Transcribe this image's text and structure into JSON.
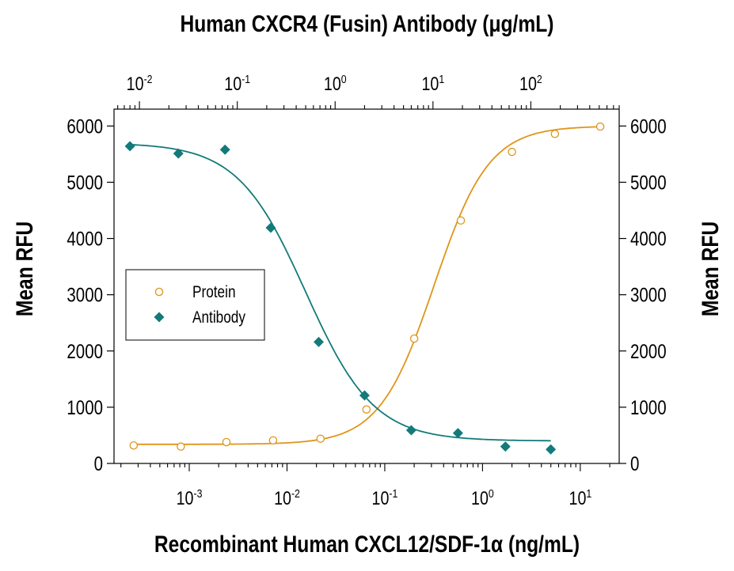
{
  "chart_data": {
    "type": "scatter",
    "title_top": "Human CXCR4 (Fusin) Antibody (μg/mL)",
    "xlabel": "Recombinant Human CXCL12/SDF-1α (ng/mL)",
    "ylabel_left": "Mean RFU",
    "ylabel_right": "Mean RFU",
    "x_scale": "log",
    "x_bottom_range": [
      0.00017,
      25
    ],
    "x_top_range": [
      0.0055,
      800
    ],
    "ylim": [
      0,
      6300
    ],
    "y_ticks": [
      "0",
      "1000",
      "2000",
      "3000",
      "4000",
      "5000",
      "6000"
    ],
    "x_bottom_ticks": [
      {
        "base": "10",
        "exp": "-3",
        "value": 0.001
      },
      {
        "base": "10",
        "exp": "-2",
        "value": 0.01
      },
      {
        "base": "10",
        "exp": "-1",
        "value": 0.1
      },
      {
        "base": "10",
        "exp": "0",
        "value": 1
      },
      {
        "base": "10",
        "exp": "1",
        "value": 10
      }
    ],
    "x_top_ticks": [
      {
        "base": "10",
        "exp": "-2",
        "value": 0.01
      },
      {
        "base": "10",
        "exp": "-1",
        "value": 0.1
      },
      {
        "base": "10",
        "exp": "0",
        "value": 1
      },
      {
        "base": "10",
        "exp": "1",
        "value": 10
      },
      {
        "base": "10",
        "exp": "2",
        "value": 100
      }
    ],
    "legend_position": "middle-left",
    "grid": false,
    "series": [
      {
        "name": "Protein",
        "marker": "open-circle",
        "color": "#E0951A",
        "axis": "bottom",
        "x": [
          0.00027,
          0.00082,
          0.0024,
          0.0072,
          0.022,
          0.065,
          0.2,
          0.6,
          2.0,
          5.5,
          16
        ],
        "y": [
          320,
          300,
          380,
          410,
          440,
          960,
          2220,
          4320,
          5540,
          5860,
          5990
        ],
        "fit": {
          "bottom": 340,
          "top": 6000,
          "ec50": 0.32,
          "hill": 1.55
        }
      },
      {
        "name": "Antibody",
        "marker": "filled-diamond",
        "color": "#137A7A",
        "axis": "top",
        "x": [
          0.008,
          0.025,
          0.075,
          0.22,
          0.68,
          2.0,
          6.0,
          18,
          55,
          160
        ],
        "y": [
          5640,
          5510,
          5580,
          4190,
          2160,
          1210,
          590,
          540,
          300,
          250
        ],
        "fit": {
          "bottom": 400,
          "top": 5700,
          "ec50": 0.5,
          "hill": 1.25
        }
      }
    ]
  }
}
